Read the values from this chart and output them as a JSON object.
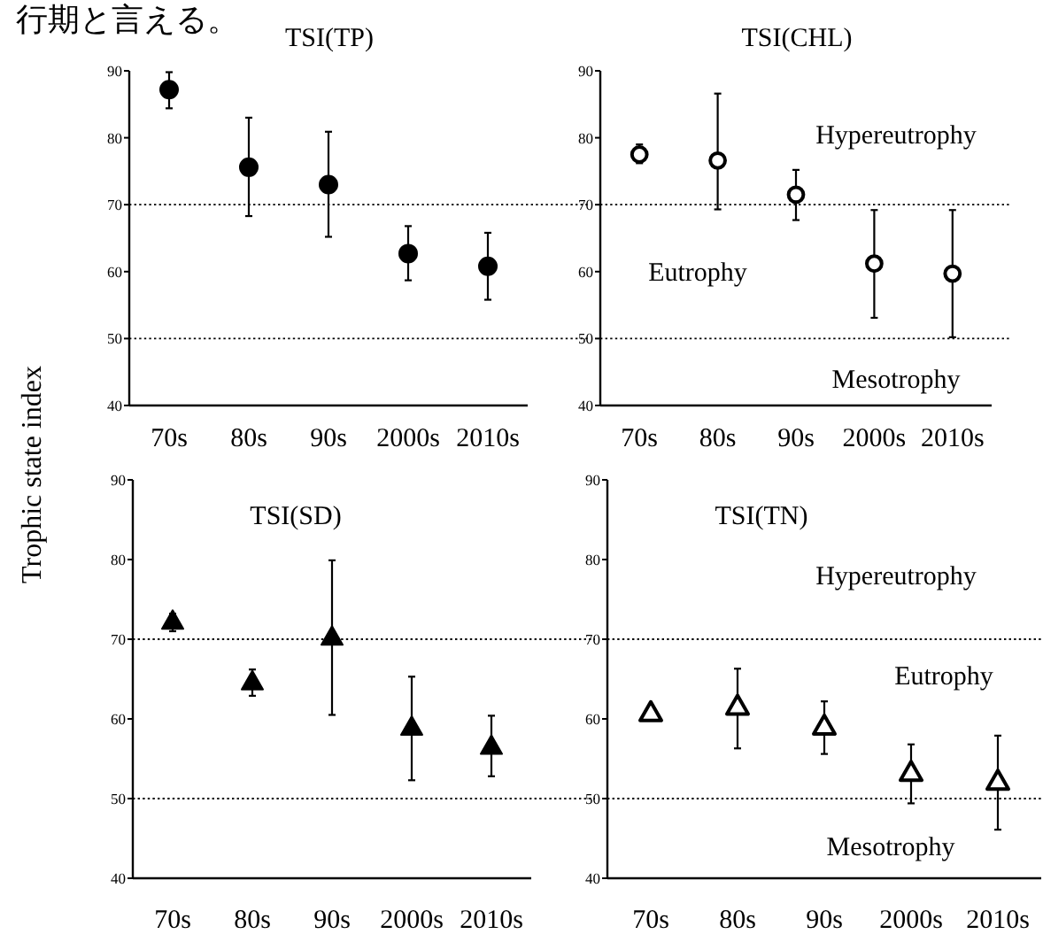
{
  "chart_data": [
    {
      "type": "scatter",
      "title": "TSI(TP)",
      "ylabel": "Trophic state index",
      "annotations": [
        "行期と言える。"
      ],
      "categories": [
        "70s",
        "80s",
        "90s",
        "2000s",
        "2010s"
      ],
      "marker": "circle",
      "ylim": [
        40,
        90
      ],
      "yticks": [
        40,
        50,
        60,
        70,
        80,
        90
      ],
      "series": [
        {
          "color": "#000000",
          "values": [
            87.2,
            75.6,
            73,
            62.7,
            60.8
          ],
          "errors": [
            [
              84.4,
              89.8
            ],
            [
              68.3,
              83.0
            ],
            [
              65.2,
              80.9
            ],
            [
              58.7,
              66.8
            ],
            [
              55.8,
              65.8
            ]
          ]
        }
      ],
      "ref_lines": [
        {
          "axis": "y",
          "value": 70,
          "line_style": "dotted"
        },
        {
          "axis": "y",
          "value": 50,
          "line_style": "dotted"
        }
      ]
    },
    {
      "type": "scatter",
      "title": "TSI(CHL)",
      "annotations": [
        "Hypereutrophy",
        "Eutrophy",
        "Mesotrophy"
      ],
      "categories": [
        "70s",
        "80s",
        "90s",
        "2000s",
        "2010s"
      ],
      "marker": "circle",
      "ylim": [
        40,
        90
      ],
      "yticks": [
        40,
        50,
        60,
        70,
        80,
        90
      ],
      "series": [
        {
          "color": "#000000",
          "values": [
            77.5,
            76.6,
            71.5,
            61.2,
            59.7
          ],
          "errors": [
            [
              76.2,
              79.0
            ],
            [
              69.3,
              86.6
            ],
            [
              67.7,
              75.2
            ],
            [
              53.1,
              69.2
            ],
            [
              50.2,
              69.2
            ]
          ]
        }
      ],
      "ref_lines": [
        {
          "axis": "y",
          "value": 70,
          "line_style": "dotted"
        },
        {
          "axis": "y",
          "value": 50,
          "line_style": "dotted"
        }
      ]
    },
    {
      "type": "scatter",
      "title": "TSI(SD)",
      "categories": [
        "70s",
        "80s",
        "90s",
        "2000s",
        "2010s"
      ],
      "marker": "triangle",
      "ylim": [
        40,
        90
      ],
      "yticks": [
        40,
        50,
        60,
        70,
        80,
        90
      ],
      "series": [
        {
          "color": "#000000",
          "values": [
            72.3,
            64.7,
            70.3,
            59.0,
            56.6
          ],
          "errors": [
            [
              71.0,
              73.2
            ],
            [
              62.9,
              66.2
            ],
            [
              60.5,
              79.9
            ],
            [
              52.3,
              65.3
            ],
            [
              52.8,
              60.4
            ]
          ]
        }
      ],
      "ref_lines": [
        {
          "axis": "y",
          "value": 70,
          "line_style": "dotted"
        },
        {
          "axis": "y",
          "value": 50,
          "line_style": "dotted"
        }
      ]
    },
    {
      "type": "scatter",
      "title": "TSI(TN)",
      "annotations": [
        "Hypereutrophy",
        "Eutrophy",
        "Mesotrophy"
      ],
      "categories": [
        "70s",
        "80s",
        "90s",
        "2000s",
        "2010s"
      ],
      "marker": "triangle",
      "ylim": [
        40,
        90
      ],
      "yticks": [
        40,
        50,
        60,
        70,
        80,
        90
      ],
      "series": [
        {
          "color": "#000000",
          "values": [
            60.8,
            61.6,
            59.1,
            53.3,
            52.2
          ],
          "errors": [
            null,
            [
              56.3,
              66.3
            ],
            [
              55.6,
              62.2
            ],
            [
              49.4,
              56.8
            ],
            [
              46.1,
              57.9
            ]
          ]
        }
      ],
      "ref_lines": [
        {
          "axis": "y",
          "value": 70,
          "line_style": "dotted"
        },
        {
          "axis": "y",
          "value": 50,
          "line_style": "dotted"
        }
      ]
    }
  ]
}
